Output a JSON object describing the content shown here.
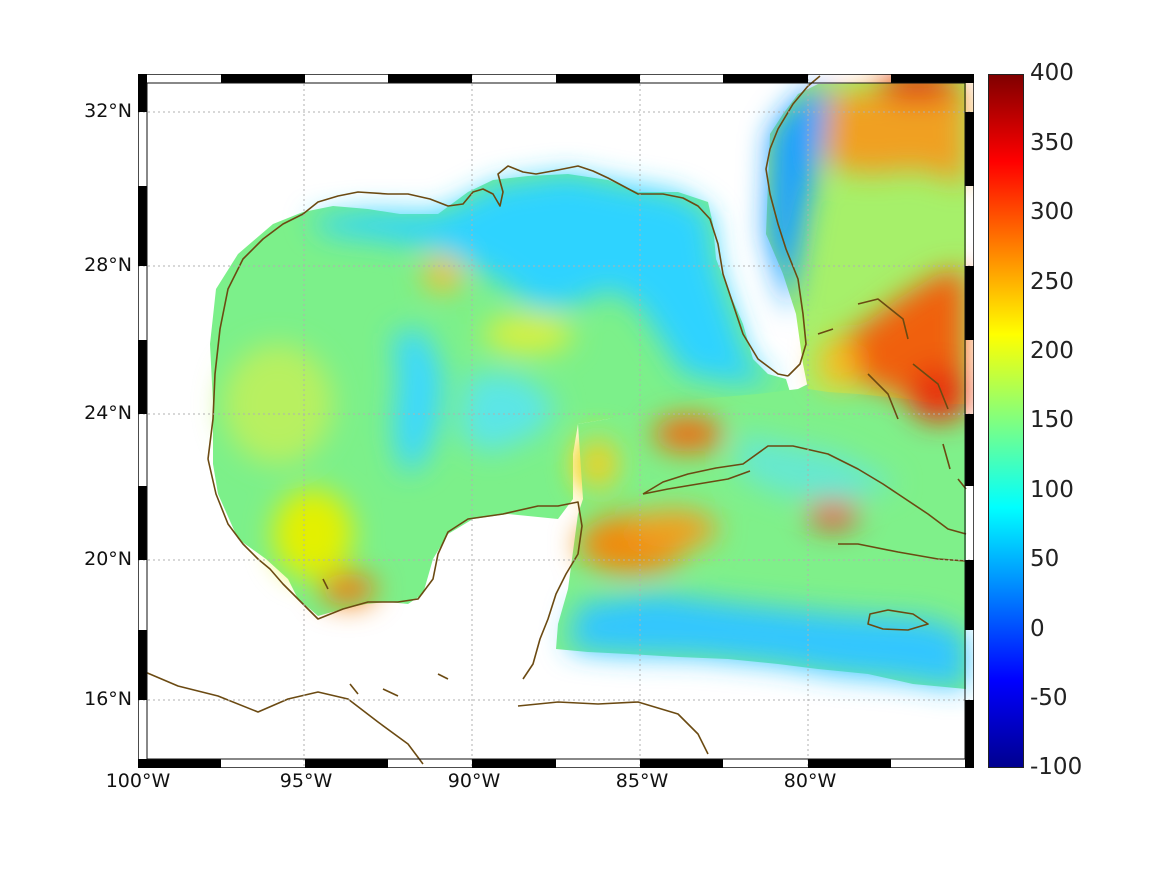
{
  "map": {
    "lat_labels": [
      "32°N",
      "28°N",
      "24°N",
      "20°N",
      "16°N"
    ],
    "lon_labels": [
      "100°W",
      "95°W",
      "90°W",
      "85°W",
      "80°W"
    ],
    "lat_ticks": [
      32,
      28,
      24,
      20,
      16
    ],
    "lon_ticks": [
      -100,
      -95,
      -90,
      -85,
      -80
    ],
    "extent": {
      "lon_min": -100,
      "lon_max": -75,
      "lat_min": 14.3,
      "lat_max": 33
    },
    "coastline_color": "#6b4a12",
    "grid": true
  },
  "colorbar": {
    "labels": [
      "400",
      "350",
      "300",
      "250",
      "200",
      "150",
      "100",
      "50",
      "0",
      "-50",
      "-100"
    ],
    "values": [
      400,
      350,
      300,
      250,
      200,
      150,
      100,
      50,
      0,
      -50,
      -100
    ],
    "range": [
      -100,
      400
    ],
    "colormap": "jet",
    "colors": [
      "#00008f",
      "#0000ff",
      "#0080ff",
      "#00ffff",
      "#80ff80",
      "#ffff00",
      "#ff8000",
      "#ff0000",
      "#800000"
    ]
  }
}
